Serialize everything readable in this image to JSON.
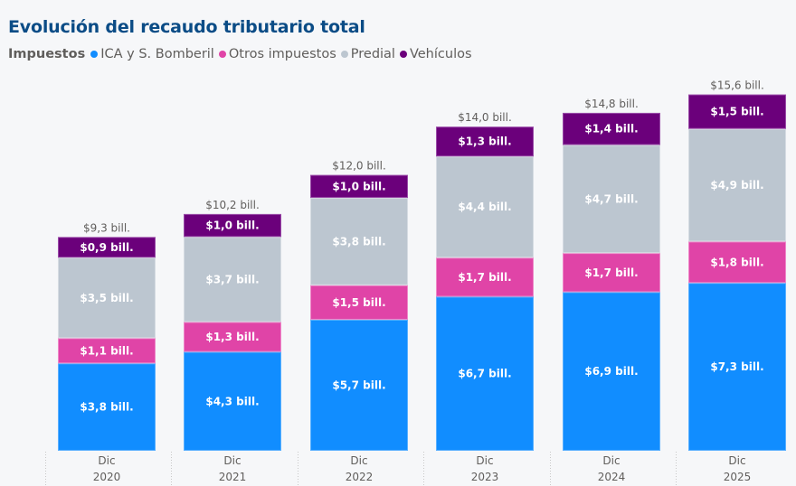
{
  "title": "Evolución del recaudo tributario total",
  "legend": {
    "title": "Impuestos",
    "items": [
      {
        "label": "ICA y S. Bomberil",
        "color": "#118DFF"
      },
      {
        "label": "Otros impuestos",
        "color": "#E044A7"
      },
      {
        "label": "Predial",
        "color": "#BCC6D0"
      },
      {
        "label": "Vehículos",
        "color": "#6B007B"
      }
    ]
  },
  "chart_data": {
    "type": "bar",
    "stacked": true,
    "title": "Evolución del recaudo tributario total",
    "xlabel": "",
    "ylabel": "",
    "unit": "billones COP",
    "categories": [
      [
        "Dic",
        "2020"
      ],
      [
        "Dic",
        "2021"
      ],
      [
        "Dic",
        "2022"
      ],
      [
        "Dic",
        "2023"
      ],
      [
        "Dic",
        "2024"
      ],
      [
        "Dic",
        "2025"
      ]
    ],
    "series": [
      {
        "name": "ICA y S. Bomberil",
        "color": "#118DFF",
        "values": [
          3.8,
          4.3,
          5.7,
          6.7,
          6.9,
          7.3
        ],
        "labels": [
          "$3,8 bill.",
          "$4,3 bill.",
          "$5,7 bill.",
          "$6,7 bill.",
          "$6,9 bill.",
          "$7,3 bill."
        ]
      },
      {
        "name": "Otros impuestos",
        "color": "#E044A7",
        "values": [
          1.1,
          1.3,
          1.5,
          1.7,
          1.7,
          1.8
        ],
        "labels": [
          "$1,1 bill.",
          "$1,3 bill.",
          "$1,5 bill.",
          "$1,7 bill.",
          "$1,7 bill.",
          "$1,8 bill."
        ]
      },
      {
        "name": "Predial",
        "color": "#BCC6D0",
        "values": [
          3.5,
          3.7,
          3.8,
          4.4,
          4.7,
          4.9
        ],
        "labels": [
          "$3,5 bill.",
          "$3,7 bill.",
          "$3,8 bill.",
          "$4,4 bill.",
          "$4,7 bill.",
          "$4,9 bill."
        ]
      },
      {
        "name": "Vehículos",
        "color": "#6B007B",
        "values": [
          0.9,
          1.0,
          1.0,
          1.3,
          1.4,
          1.5
        ],
        "labels": [
          "$0,9 bill.",
          "$1,0 bill.",
          "$1,0 bill.",
          "$1,3 bill.",
          "$1,4 bill.",
          "$1,5 bill."
        ]
      }
    ],
    "totals": [
      9.3,
      10.2,
      12.0,
      14.0,
      14.8,
      15.6
    ],
    "total_labels": [
      "$9,3 bill.",
      "$10,2 bill.",
      "$12,0 bill.",
      "$14,0 bill.",
      "$14,8 bill.",
      "$15,6 bill."
    ],
    "ylim": [
      0,
      15.6
    ],
    "grid": false,
    "legend_position": "top-left"
  }
}
